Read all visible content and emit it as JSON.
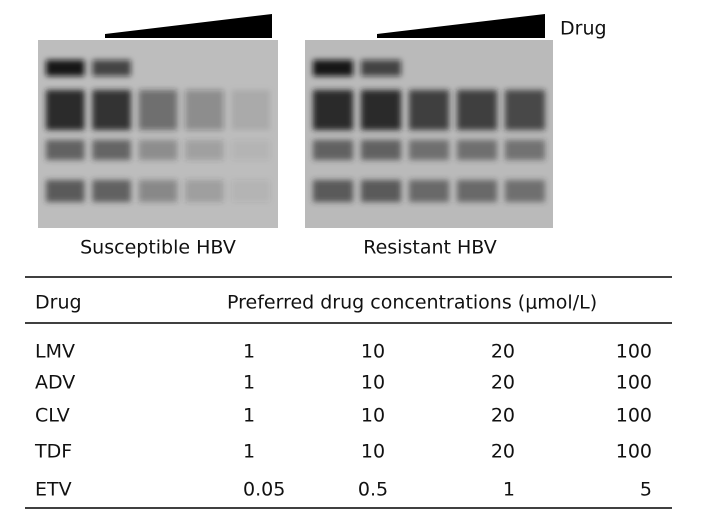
{
  "wedge_label": "Drug",
  "captions": [
    "Susceptible HBV",
    "Resistant HBV"
  ],
  "table": {
    "header": [
      "Drug",
      "Preferred drug concentrations (μmol/L)"
    ],
    "rows": [
      [
        "LMV",
        "1",
        "10",
        "20",
        "100"
      ],
      [
        "ADV",
        "1",
        "10",
        "20",
        "100"
      ],
      [
        "CLV",
        "1",
        "10",
        "20",
        "100"
      ],
      [
        "TDF",
        "1",
        "10",
        "20",
        "100"
      ],
      [
        "ETV",
        "0.05",
        "0.5",
        "1",
        "5"
      ]
    ]
  }
}
